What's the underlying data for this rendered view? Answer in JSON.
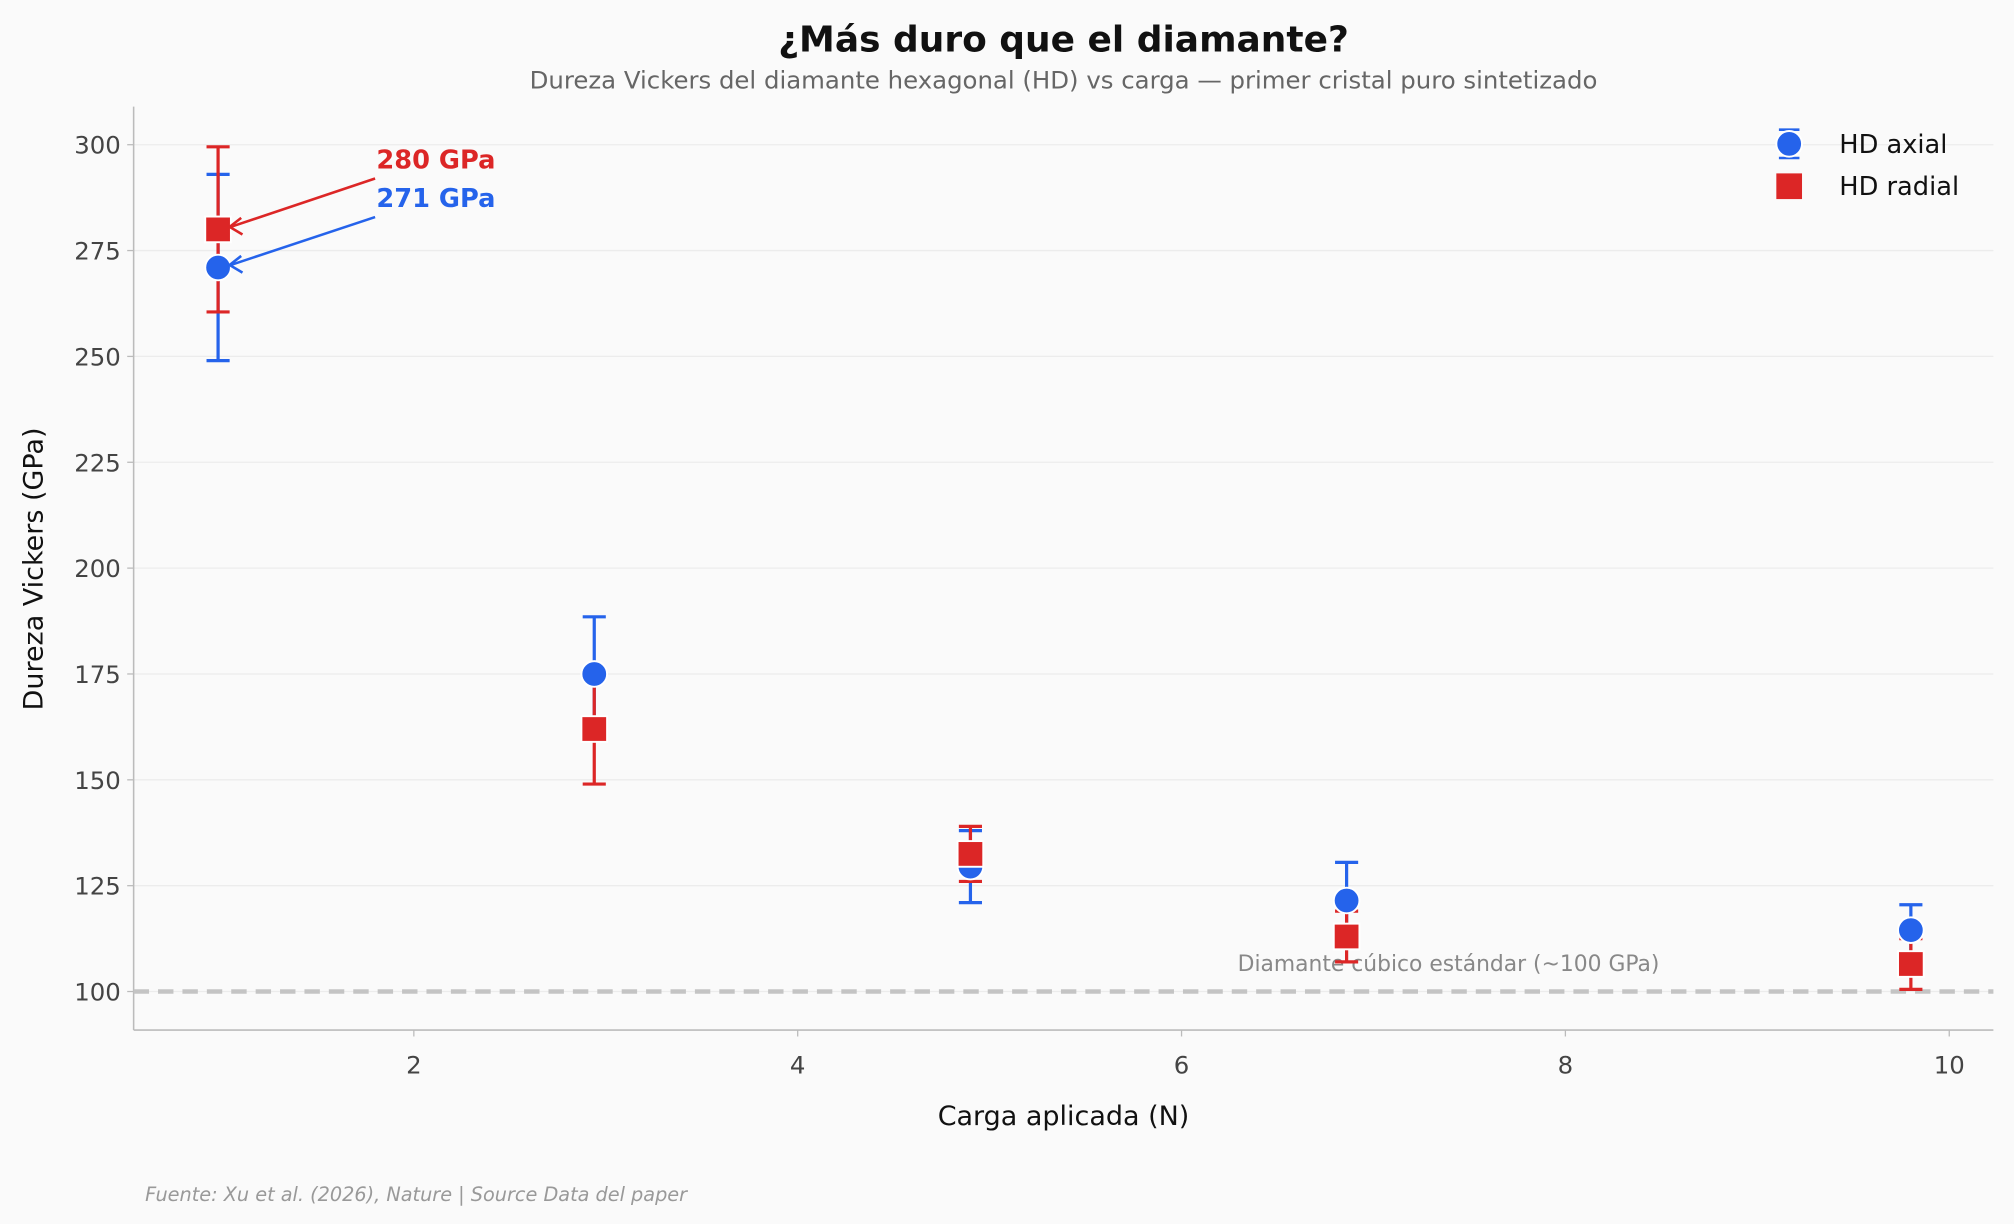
{
  "chart_data": {
    "type": "scatter",
    "title": "¿Más duro que el diamante?",
    "subtitle": "Dureza Vickers del diamante hexagonal (HD) vs carga — primer cristal puro sintetizado",
    "xlabel": "Carga aplicada (N)",
    "ylabel": "Dureza Vickers (GPa)",
    "xlim": [
      0.54,
      10.23
    ],
    "ylim": [
      90.9,
      309
    ],
    "xticks": [
      2,
      4,
      6,
      8,
      10
    ],
    "yticks": [
      100,
      125,
      150,
      175,
      200,
      225,
      250,
      275,
      300
    ],
    "grid": "horizontal",
    "legend_position": "top-right",
    "series": [
      {
        "name": "HD axial",
        "marker": "circle",
        "color": "#2563eb",
        "x": [
          0.98,
          2.94,
          4.9,
          6.86,
          9.8
        ],
        "y": [
          271,
          175,
          129.5,
          121.5,
          114.5
        ],
        "yerr": [
          22,
          13.5,
          8.5,
          9,
          6
        ]
      },
      {
        "name": "HD radial",
        "marker": "square",
        "color": "#dc2626",
        "x": [
          0.98,
          2.94,
          4.9,
          6.86,
          9.8
        ],
        "y": [
          280,
          162,
          132.5,
          113,
          106.5
        ],
        "yerr": [
          19.5,
          13,
          6.5,
          6,
          6
        ]
      }
    ],
    "reference_line": {
      "y": 100,
      "label": "Diamante cúbico estándar (~100 GPa)",
      "color": "#c4c4c4"
    },
    "annotations": [
      {
        "text": "280 GPa",
        "series": 1,
        "point": 0,
        "color": "#dc2626"
      },
      {
        "text": "271 GPa",
        "series": 0,
        "point": 0,
        "color": "#2563eb"
      }
    ],
    "source": "Fuente: Xu et al. (2026), Nature | Source Data del paper"
  }
}
